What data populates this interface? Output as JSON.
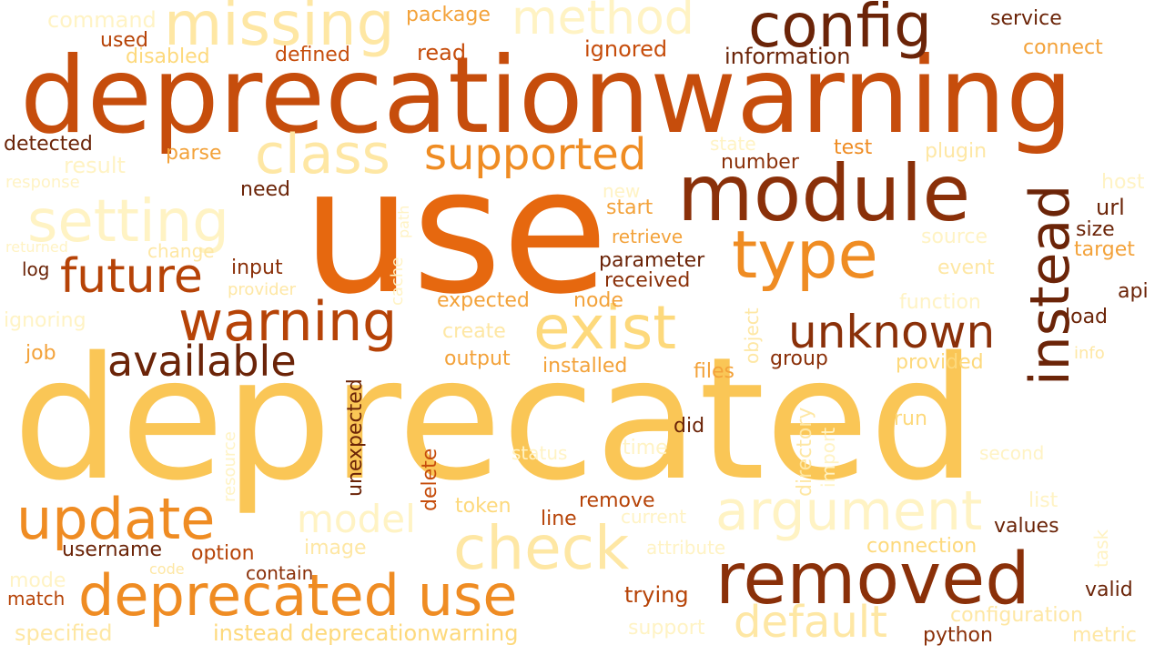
{
  "colors": {
    "c1": "#6b2408",
    "c2": "#8a3009",
    "c3": "#b64307",
    "c4": "#c64d0c",
    "c5": "#e6680f",
    "c6": "#ef8c23",
    "c7": "#f3a23a",
    "c8": "#fac656",
    "c9": "#fdd97c",
    "c10": "#fee7a4",
    "c11": "#fff3c4"
  },
  "words": [
    {
      "text": "deprecated",
      "color": "c8"
    },
    {
      "text": "use",
      "color": "c5"
    },
    {
      "text": "deprecationwarning",
      "color": "c4"
    },
    {
      "text": "module",
      "color": "c2"
    },
    {
      "text": "config",
      "color": "c1"
    },
    {
      "text": "missing",
      "color": "c10"
    },
    {
      "text": "method",
      "color": "c11"
    },
    {
      "text": "instead",
      "color": "c1"
    },
    {
      "text": "type",
      "color": "c6"
    },
    {
      "text": "class",
      "color": "c10"
    },
    {
      "text": "supported",
      "color": "c6"
    },
    {
      "text": "setting",
      "color": "c11"
    },
    {
      "text": "future",
      "color": "c3"
    },
    {
      "text": "warning",
      "color": "c3"
    },
    {
      "text": "exist",
      "color": "c9"
    },
    {
      "text": "unknown",
      "color": "c2"
    },
    {
      "text": "available",
      "color": "c1"
    },
    {
      "text": "update",
      "color": "c6"
    },
    {
      "text": "argument",
      "color": "c11"
    },
    {
      "text": "check",
      "color": "c10"
    },
    {
      "text": "removed",
      "color": "c2"
    },
    {
      "text": "deprecated use",
      "color": "c6"
    },
    {
      "text": "default",
      "color": "c10"
    },
    {
      "text": "model",
      "color": "c11"
    },
    {
      "text": "command",
      "color": "c11"
    },
    {
      "text": "used",
      "color": "c3"
    },
    {
      "text": "disabled",
      "color": "c9"
    },
    {
      "text": "package",
      "color": "c7"
    },
    {
      "text": "defined",
      "color": "c4"
    },
    {
      "text": "read",
      "color": "c4"
    },
    {
      "text": "ignored",
      "color": "c4"
    },
    {
      "text": "information",
      "color": "c1"
    },
    {
      "text": "service",
      "color": "c1"
    },
    {
      "text": "connect",
      "color": "c7"
    },
    {
      "text": "detected",
      "color": "c1"
    },
    {
      "text": "parse",
      "color": "c7"
    },
    {
      "text": "result",
      "color": "c11"
    },
    {
      "text": "response",
      "color": "c11"
    },
    {
      "text": "state",
      "color": "c11"
    },
    {
      "text": "test",
      "color": "c6"
    },
    {
      "text": "plugin",
      "color": "c10"
    },
    {
      "text": "number",
      "color": "c2"
    },
    {
      "text": "host",
      "color": "c11"
    },
    {
      "text": "need",
      "color": "c1"
    },
    {
      "text": "new",
      "color": "c11"
    },
    {
      "text": "start",
      "color": "c7"
    },
    {
      "text": "url",
      "color": "c1"
    },
    {
      "text": "size",
      "color": "c1"
    },
    {
      "text": "target",
      "color": "c7"
    },
    {
      "text": "returned",
      "color": "c11"
    },
    {
      "text": "change",
      "color": "c10"
    },
    {
      "text": "retrieve",
      "color": "c7"
    },
    {
      "text": "source",
      "color": "c11"
    },
    {
      "text": "log",
      "color": "c1"
    },
    {
      "text": "input",
      "color": "c2"
    },
    {
      "text": "parameter",
      "color": "c1"
    },
    {
      "text": "event",
      "color": "c10"
    },
    {
      "text": "provider",
      "color": "c10"
    },
    {
      "text": "received",
      "color": "c2"
    },
    {
      "text": "api",
      "color": "c1"
    },
    {
      "text": "expected",
      "color": "c7"
    },
    {
      "text": "node",
      "color": "c7"
    },
    {
      "text": "function",
      "color": "c11"
    },
    {
      "text": "load",
      "color": "c1"
    },
    {
      "text": "ignoring",
      "color": "c11"
    },
    {
      "text": "create",
      "color": "c10"
    },
    {
      "text": "job",
      "color": "c7"
    },
    {
      "text": "output",
      "color": "c7"
    },
    {
      "text": "installed",
      "color": "c7"
    },
    {
      "text": "files",
      "color": "c7"
    },
    {
      "text": "group",
      "color": "c2"
    },
    {
      "text": "provided",
      "color": "c9"
    },
    {
      "text": "info",
      "color": "c10"
    },
    {
      "text": "did",
      "color": "c1"
    },
    {
      "text": "run",
      "color": "c9"
    },
    {
      "text": "status",
      "color": "c11"
    },
    {
      "text": "time",
      "color": "c11"
    },
    {
      "text": "second",
      "color": "c11"
    },
    {
      "text": "token",
      "color": "c9"
    },
    {
      "text": "remove",
      "color": "c3"
    },
    {
      "text": "line",
      "color": "c3"
    },
    {
      "text": "current",
      "color": "c11"
    },
    {
      "text": "list",
      "color": "c11"
    },
    {
      "text": "values",
      "color": "c1"
    },
    {
      "text": "username",
      "color": "c1"
    },
    {
      "text": "option",
      "color": "c3"
    },
    {
      "text": "image",
      "color": "c10"
    },
    {
      "text": "attribute",
      "color": "c11"
    },
    {
      "text": "connection",
      "color": "c9"
    },
    {
      "text": "code",
      "color": "c10"
    },
    {
      "text": "contain",
      "color": "c2"
    },
    {
      "text": "mode",
      "color": "c11"
    },
    {
      "text": "match",
      "color": "c3"
    },
    {
      "text": "trying",
      "color": "c3"
    },
    {
      "text": "valid",
      "color": "c1"
    },
    {
      "text": "configuration",
      "color": "c10"
    },
    {
      "text": "specified",
      "color": "c10"
    },
    {
      "text": "instead deprecationwarning",
      "color": "c9"
    },
    {
      "text": "support",
      "color": "c11"
    },
    {
      "text": "python",
      "color": "c2"
    },
    {
      "text": "metric",
      "color": "c10"
    },
    {
      "text": "unexpected",
      "color": "c1"
    },
    {
      "text": "delete",
      "color": "c4"
    },
    {
      "text": "resource",
      "color": "c11"
    },
    {
      "text": "object",
      "color": "c10"
    },
    {
      "text": "directory",
      "color": "c10"
    },
    {
      "text": "import",
      "color": "c11"
    },
    {
      "text": "task",
      "color": "c11"
    },
    {
      "text": "cache",
      "color": "c11"
    },
    {
      "text": "path",
      "color": "c11"
    }
  ]
}
